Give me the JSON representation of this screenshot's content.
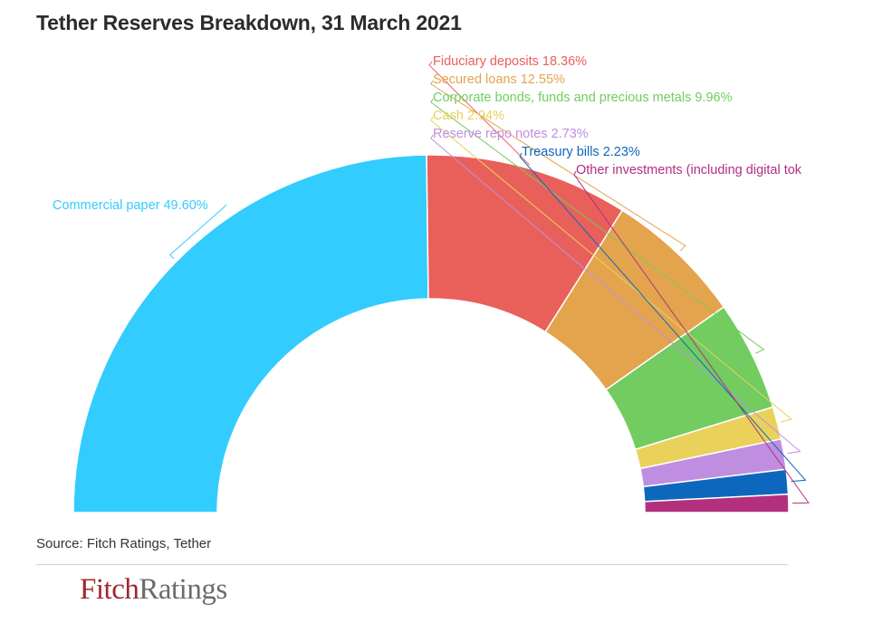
{
  "title": "Tether Reserves Breakdown, 31 March 2021",
  "source": "Source: Fitch Ratings, Tether",
  "logo": {
    "part1": "Fitch",
    "part2": "Ratings"
  },
  "chart_data": {
    "type": "pie",
    "variant": "semicircle-donut",
    "title": "Tether Reserves Breakdown, 31 March 2021",
    "unit": "%",
    "slices": [
      {
        "label": "Commercial paper 49.60%",
        "value": 49.6,
        "color": "#33ccff"
      },
      {
        "label": "Fiduciary deposits 18.36%",
        "value": 18.36,
        "color": "#e9605b"
      },
      {
        "label": "Secured loans 12.55%",
        "value": 12.55,
        "color": "#e4a44e"
      },
      {
        "label": "Corporate bonds, funds and precious metals 9.96%",
        "value": 9.96,
        "color": "#72cc5f"
      },
      {
        "label": "Cash 2.94%",
        "value": 2.94,
        "color": "#e9d15a"
      },
      {
        "label": "Reserve repo notes 2.73%",
        "value": 2.73,
        "color": "#c08ee0"
      },
      {
        "label": "Treasury bills 2.23%",
        "value": 2.23,
        "color": "#0d68bd"
      },
      {
        "label": "Other investments (including digital tok",
        "value": 1.63,
        "color": "#b2307e"
      }
    ]
  }
}
